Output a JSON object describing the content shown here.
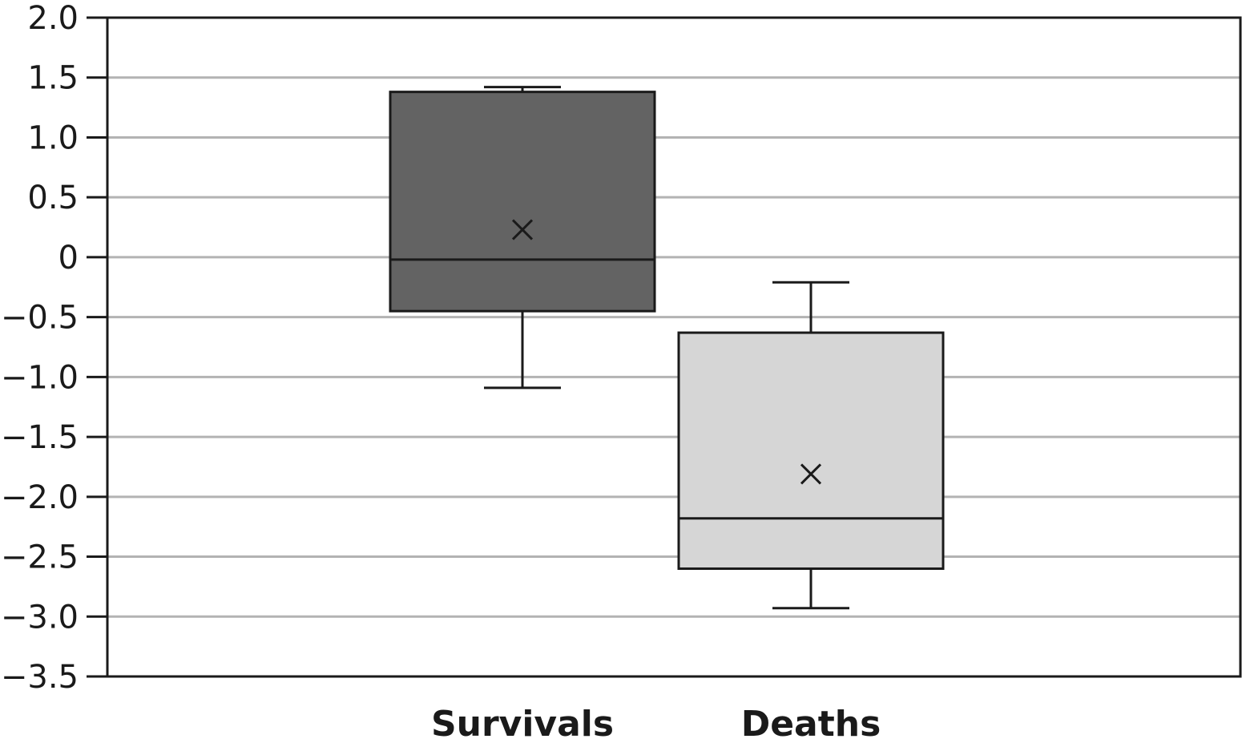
{
  "chart_data": {
    "type": "box",
    "title": "",
    "xlabel": "",
    "ylabel": "",
    "ylim": [
      -3.5,
      2.0
    ],
    "yticks": [
      2.0,
      1.5,
      1.0,
      0.5,
      0,
      -0.5,
      -1.0,
      -1.5,
      -2.0,
      -2.5,
      -3.0,
      -3.5
    ],
    "ytick_labels": [
      "2.0",
      "1.5",
      "1.0",
      "0.5",
      "0",
      "−0.5",
      "−1.0",
      "−1.5",
      "−2.0",
      "−2.5",
      "−3.0",
      "−3.5"
    ],
    "grid": true,
    "categories": [
      "Survivals",
      "Deaths"
    ],
    "boxes": [
      {
        "category": "Survivals",
        "whisker_low": -1.09,
        "q1": -0.45,
        "median": -0.02,
        "q3": 1.38,
        "whisker_high": 1.42,
        "mean": 0.23,
        "color": "#636363"
      },
      {
        "category": "Deaths",
        "whisker_low": -2.93,
        "q1": -2.6,
        "median": -2.18,
        "q3": -0.63,
        "whisker_high": -0.21,
        "mean": -1.81,
        "color": "#d6d6d6"
      }
    ],
    "colors": {
      "grid": "#b3b3b3",
      "axis": "#1a1a1a",
      "box_stroke": "#1a1a1a"
    }
  }
}
